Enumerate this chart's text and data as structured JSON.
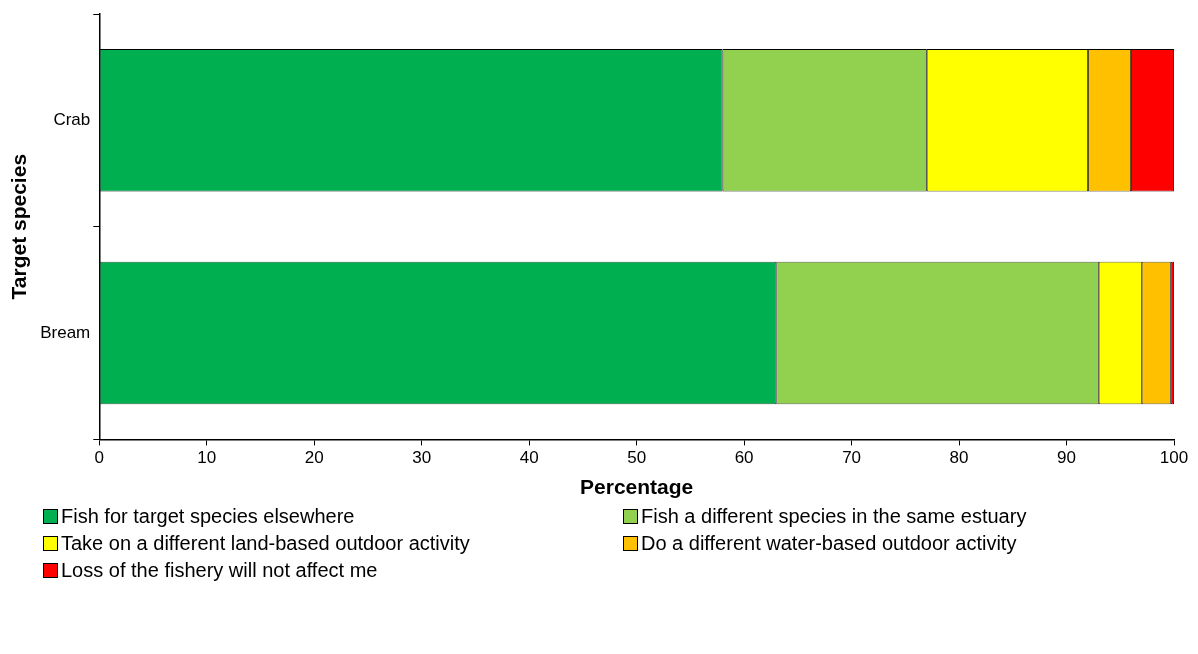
{
  "chart_data": {
    "type": "bar",
    "orientation": "horizontal",
    "stacked": true,
    "xlabel": "Percentage",
    "ylabel": "Target species",
    "categories": [
      "Crab",
      "Bream"
    ],
    "series": [
      {
        "name": "Fish for target species elsewhere",
        "color": "#00b050",
        "values": [
          58,
          63
        ]
      },
      {
        "name": "Fish a different species in the same estuary",
        "color": "#92d050",
        "values": [
          19,
          30
        ]
      },
      {
        "name": "Take on a different land-based outdoor activity",
        "color": "#ffff00",
        "values": [
          15,
          4
        ]
      },
      {
        "name": "Do a different water-based outdoor activity",
        "color": "#ffc000",
        "values": [
          4,
          2.7
        ]
      },
      {
        "name": "Loss of the fishery will not affect me",
        "color": "#ff0000",
        "values": [
          4,
          0.3
        ]
      }
    ],
    "xlim": [
      0,
      100
    ],
    "xticks": [
      0,
      10,
      20,
      30,
      40,
      50,
      60,
      70,
      80,
      90,
      100
    ],
    "grid": false,
    "legend": "bottom"
  }
}
